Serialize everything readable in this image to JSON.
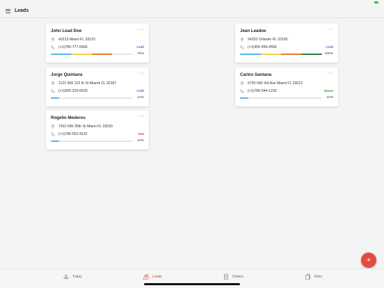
{
  "header": {
    "title": "Leads"
  },
  "leads": [
    {
      "name": "John Lead Doe",
      "address": "43213 Miami FL 33123",
      "phone": "(+1)786-777-6666",
      "status": "Cold",
      "status_color": "#8b3fd9",
      "progress": "75%",
      "segments": [
        "#5ab4e0",
        "#f2d04b",
        "#e07a3a"
      ]
    },
    {
      "name": "Jean Leadoe",
      "address": "54332 Orlando FL 33190",
      "phone": "(+1)456-456-4566",
      "status": "Cold",
      "status_color": "#8b3fd9",
      "progress": "100%",
      "segments": [
        "#5ab4e0",
        "#f2d04b",
        "#e07a3a",
        "#2e7d3c"
      ]
    },
    {
      "name": "Jorge Quintana",
      "address": "1122 NW 122 th St Miamk FL 33187",
      "phone": "(+1)305-225-6533",
      "status": "Cold",
      "status_color": "#8b3fd9",
      "progress": "10%",
      "segments": [
        "#5ab4e0"
      ]
    },
    {
      "name": "Carlos Santana",
      "address": "6755 NW 3rd Ave Miami FL 33012",
      "phone": "(+1)786-544-1233",
      "status": "Warm",
      "status_color": "#3a9a3a",
      "progress": "10%",
      "segments": [
        "#5ab4e0"
      ]
    },
    {
      "name": "Rogelio Mederos",
      "address": "7431 NW 35th St Miami FL 33020",
      "phone": "(+1)786-552-4122",
      "status": "Hot",
      "status_color": "#d9453b",
      "progress": "10%",
      "segments": [
        "#5ab4e0"
      ]
    }
  ],
  "fab": {
    "label": "+"
  },
  "tabs": [
    {
      "label": "Today",
      "icon": "today-icon"
    },
    {
      "label": "Leads",
      "icon": "leads-icon"
    },
    {
      "label": "Orders",
      "icon": "orders-icon"
    },
    {
      "label": "Files",
      "icon": "files-icon"
    }
  ]
}
